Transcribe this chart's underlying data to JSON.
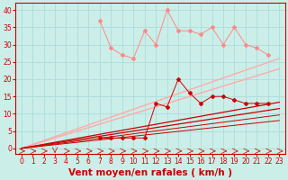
{
  "title": "",
  "xlabel": "Vent moyen/en rafales ( km/h )",
  "ylabel": "",
  "bg_color": "#cceee8",
  "grid_color": "#aadddd",
  "x": [
    0,
    1,
    2,
    3,
    4,
    5,
    6,
    7,
    8,
    9,
    10,
    11,
    12,
    13,
    14,
    15,
    16,
    17,
    18,
    19,
    20,
    21,
    22,
    23
  ],
  "line_light1_slope": 1.13,
  "line_light1_intercept": 0.0,
  "line_light2_slope": 1.0,
  "line_light2_intercept": 0.0,
  "line_dark1_slope": 0.58,
  "line_dark1_intercept": 0.0,
  "line_dark2_slope": 0.5,
  "line_dark2_intercept": 0.0,
  "line_dark3_slope": 0.42,
  "line_dark3_intercept": 0.0,
  "line_dark4_slope": 0.35,
  "line_dark4_intercept": 0.0,
  "scatter_pink_x": [
    7,
    8,
    9,
    10,
    11,
    12,
    13,
    14,
    15,
    16,
    17,
    18,
    19,
    20,
    21,
    22
  ],
  "scatter_pink_y": [
    37,
    29,
    27,
    26,
    34,
    30,
    40,
    34,
    34,
    33,
    35,
    30,
    35,
    30,
    29,
    27
  ],
  "scatter_dark_x": [
    7,
    8,
    9,
    10,
    11,
    12,
    13,
    14,
    15,
    16,
    17,
    18,
    19,
    20,
    21,
    22
  ],
  "scatter_dark_y": [
    3,
    3,
    3,
    3,
    3,
    13,
    12,
    20,
    16,
    13,
    15,
    15,
    14,
    13,
    13,
    13
  ],
  "xlim": [
    -0.5,
    23.5
  ],
  "ylim": [
    -1.5,
    42
  ],
  "yticks": [
    0,
    5,
    10,
    15,
    20,
    25,
    30,
    35,
    40
  ],
  "xticks": [
    0,
    1,
    2,
    3,
    4,
    5,
    6,
    7,
    8,
    9,
    10,
    11,
    12,
    13,
    14,
    15,
    16,
    17,
    18,
    19,
    20,
    21,
    22,
    23
  ],
  "tick_fontsize": 5.5,
  "label_fontsize": 7.5,
  "light_pink": "#ffaaaa",
  "medium_pink": "#ff8888",
  "dark_red": "#cc0000",
  "arrow_color": "#cc2200"
}
